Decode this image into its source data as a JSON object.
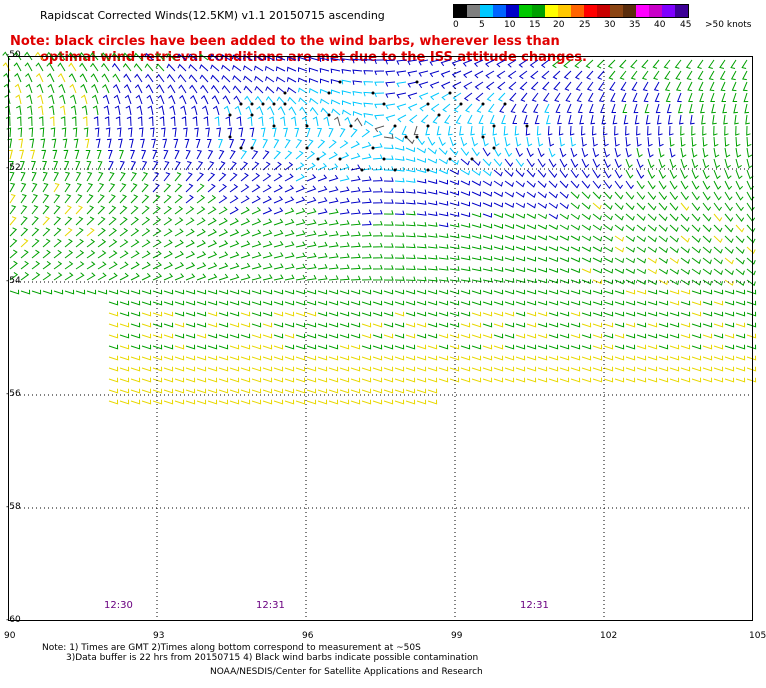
{
  "header": {
    "title": "Rapidscat Corrected Winds(12.5KM) v1.1 20150715 ascending",
    "note_line1": "Note: black circles have been added to the wind barbs, wherever less than",
    "note_line2": "optimal wind retrieval conditions are met due to the ISS attitude changes."
  },
  "legend": {
    "colors": [
      "#000000",
      "#7f7f7f",
      "#00c8ff",
      "#0064ff",
      "#0000c8",
      "#00c800",
      "#00a000",
      "#ffff00",
      "#ffc800",
      "#ff6400",
      "#ff0000",
      "#c80000",
      "#8b4513",
      "#5a2d0c",
      "#ff00ff",
      "#c800c8",
      "#7f00ff",
      "#3c0096"
    ],
    "labels": [
      "0",
      "5",
      "10",
      "15",
      "20",
      "25",
      "30",
      "35",
      "40",
      "45",
      ">50 knots"
    ]
  },
  "axes": {
    "lat_labels": [
      "-50",
      "-52",
      "-54",
      "-56",
      "-58",
      "-60"
    ],
    "lon_labels": [
      "90",
      "93",
      "96",
      "99",
      "102",
      "105"
    ]
  },
  "times": [
    "12:30",
    "12:31",
    "12:31"
  ],
  "footer": {
    "line1": "Note: 1) Times are GMT 2)Times along bottom correspond to measurement at ~50S",
    "line2": "3)Data buffer is 22 hrs from 20150715 4) Black wind barbs indicate possible contamination",
    "line3": "NOAA/NESDIS/Center for Satellite Applications and Research"
  }
}
